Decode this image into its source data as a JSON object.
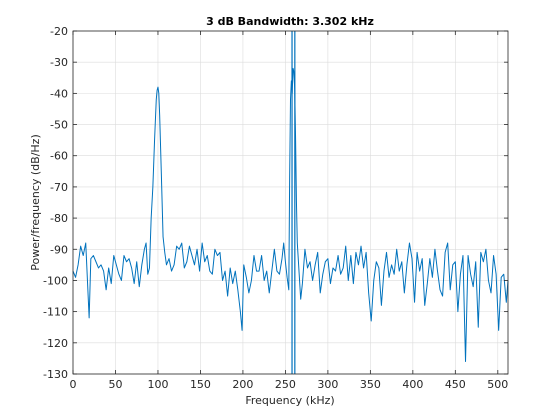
{
  "chart_data": {
    "type": "line",
    "title": "3 dB Bandwidth: 3.302 kHz",
    "xlabel": "Frequency (kHz)",
    "ylabel": "Power/frequency (dB/Hz)",
    "xlim": [
      0,
      512
    ],
    "ylim": [
      -130,
      -20
    ],
    "xticks": [
      0,
      50,
      100,
      150,
      200,
      250,
      300,
      350,
      400,
      450,
      500
    ],
    "yticks": [
      -130,
      -120,
      -110,
      -100,
      -90,
      -80,
      -70,
      -60,
      -50,
      -40,
      -30,
      -20
    ],
    "grid": true,
    "line_color": "#0072bd",
    "marker_color": "#0072bd",
    "bandwidth_markers_x": [
      257.8,
      261.1
    ],
    "series": [
      {
        "x": [
          0,
          3,
          6,
          9,
          12,
          15,
          17,
          19,
          21,
          24,
          27,
          30,
          33,
          36,
          39,
          42,
          45,
          48,
          51,
          54,
          57,
          60,
          63,
          66,
          69,
          72,
          75,
          78,
          81,
          84,
          86,
          88,
          90,
          92,
          94,
          96,
          98,
          99,
          100,
          101,
          102,
          104,
          106,
          108,
          110,
          113,
          116,
          119,
          122,
          125,
          128,
          131,
          134,
          137,
          140,
          143,
          146,
          149,
          152,
          155,
          158,
          161,
          164,
          167,
          170,
          173,
          176,
          179,
          182,
          185,
          188,
          191,
          194,
          197,
          199,
          201,
          204,
          207,
          210,
          213,
          216,
          219,
          222,
          225,
          228,
          231,
          234,
          237,
          240,
          243,
          246,
          248,
          250,
          252,
          254,
          255,
          256,
          257,
          258,
          259,
          260,
          261,
          262,
          263,
          264,
          266,
          268,
          270,
          273,
          276,
          279,
          282,
          285,
          288,
          291,
          294,
          297,
          300,
          303,
          306,
          309,
          312,
          315,
          318,
          321,
          324,
          327,
          330,
          333,
          336,
          339,
          342,
          345,
          348,
          351,
          354,
          357,
          360,
          363,
          366,
          369,
          372,
          375,
          378,
          381,
          384,
          387,
          390,
          393,
          396,
          399,
          402,
          405,
          408,
          411,
          414,
          417,
          420,
          423,
          426,
          429,
          432,
          435,
          438,
          441,
          444,
          447,
          450,
          453,
          456,
          459,
          462,
          465,
          468,
          471,
          474,
          477,
          480,
          483,
          486,
          489,
          492,
          495,
          498,
          501,
          504,
          507,
          510,
          512
        ],
        "y": [
          -97,
          -99,
          -95,
          -89,
          -92,
          -88,
          -100,
          -112,
          -93,
          -92,
          -94,
          -96,
          -95,
          -97,
          -103,
          -96,
          -101,
          -92,
          -95,
          -98,
          -100,
          -92,
          -94,
          -93,
          -96,
          -101,
          -94,
          -102,
          -95,
          -90,
          -88,
          -98,
          -96,
          -80,
          -70,
          -55,
          -42,
          -39,
          -38,
          -40,
          -47,
          -66,
          -86,
          -91,
          -95,
          -93,
          -97,
          -95,
          -89,
          -90,
          -88,
          -96,
          -94,
          -89,
          -92,
          -95,
          -90,
          -97,
          -88,
          -94,
          -92,
          -97,
          -98,
          -90,
          -92,
          -91,
          -100,
          -97,
          -105,
          -96,
          -101,
          -97,
          -103,
          -110,
          -116,
          -95,
          -99,
          -104,
          -100,
          -92,
          -97,
          -97,
          -92,
          -100,
          -97,
          -104,
          -97,
          -90,
          -97,
          -98,
          -93,
          -88,
          -94,
          -99,
          -103,
          -67,
          -42,
          -36,
          -40,
          -32,
          -33,
          -39,
          -55,
          -75,
          -88,
          -97,
          -106,
          -101,
          -90,
          -96,
          -94,
          -100,
          -95,
          -91,
          -104,
          -98,
          -94,
          -93,
          -101,
          -96,
          -97,
          -92,
          -98,
          -96,
          -89,
          -100,
          -92,
          -101,
          -91,
          -95,
          -89,
          -96,
          -91,
          -104,
          -113,
          -100,
          -94,
          -96,
          -108,
          -97,
          -91,
          -99,
          -95,
          -98,
          -90,
          -97,
          -94,
          -104,
          -95,
          -88,
          -93,
          -107,
          -91,
          -97,
          -93,
          -108,
          -101,
          -93,
          -99,
          -90,
          -97,
          -103,
          -105,
          -91,
          -88,
          -103,
          -95,
          -94,
          -110,
          -98,
          -92,
          -126,
          -92,
          -98,
          -102,
          -94,
          -115,
          -91,
          -94,
          -90,
          -100,
          -104,
          -92,
          -98,
          -116,
          -99,
          -98,
          -107,
          -100
        ]
      }
    ]
  }
}
